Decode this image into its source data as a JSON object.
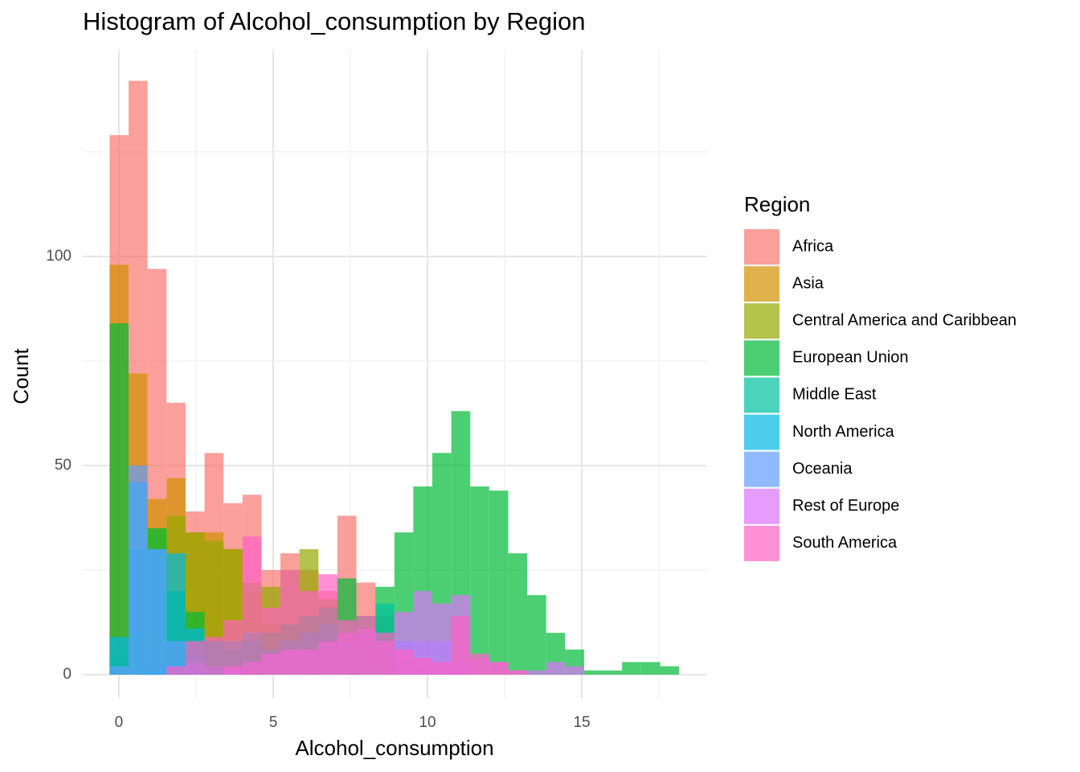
{
  "chart_data": {
    "type": "histogram",
    "title": "Histogram of Alcohol_consumption by Region",
    "x_label": "Alcohol_consumption",
    "y_label": "Count",
    "legend_title": "Region",
    "legend_position": "right",
    "grid": true,
    "opacity": 0.7,
    "xlim": [
      -1.17,
      19.06
    ],
    "ylim": [
      -5.6,
      149.4
    ],
    "xticks": [
      0,
      5,
      10,
      15
    ],
    "yticks": [
      0,
      50,
      100
    ],
    "minor_xticks": [
      2.5,
      7.5,
      12.5,
      17.5
    ],
    "minor_yticks": [
      25,
      75,
      125
    ],
    "bins": [
      -0.3,
      0.315,
      0.93,
      1.545,
      2.16,
      2.775,
      3.39,
      4.005,
      4.62,
      5.235,
      5.85,
      6.465,
      7.08,
      7.695,
      8.31,
      8.925,
      9.54,
      10.155,
      10.77,
      11.385,
      12.0,
      12.615,
      13.23,
      13.845,
      14.46,
      15.075,
      15.69,
      16.305,
      16.92,
      17.535,
      18.15
    ],
    "series": [
      {
        "name": "Africa",
        "color": "#F8766D",
        "values": [
          129,
          142,
          97,
          65,
          39,
          53,
          41,
          43,
          25,
          29,
          25,
          20,
          38,
          22,
          14,
          3,
          2,
          0,
          0,
          0,
          0,
          0,
          0,
          0,
          0,
          0,
          0,
          0,
          0,
          0
        ]
      },
      {
        "name": "Asia",
        "color": "#D39200",
        "values": [
          98,
          72,
          42,
          47,
          34,
          34,
          30,
          20,
          12,
          10,
          12,
          10,
          8,
          5,
          3,
          2,
          1,
          0,
          0,
          0,
          0,
          0,
          0,
          0,
          0,
          0,
          0,
          0,
          0,
          0
        ]
      },
      {
        "name": "Central America and Caribbean",
        "color": "#93AA00",
        "values": [
          5,
          10,
          35,
          38,
          34,
          32,
          30,
          22,
          21,
          25,
          30,
          18,
          10,
          6,
          4,
          2,
          0,
          0,
          0,
          0,
          0,
          0,
          0,
          0,
          0,
          0,
          0,
          0,
          0,
          0
        ]
      },
      {
        "name": "European Union",
        "color": "#00BA38",
        "values": [
          84,
          30,
          35,
          20,
          15,
          8,
          6,
          8,
          10,
          12,
          14,
          16,
          23,
          14,
          21,
          34,
          45,
          53,
          63,
          45,
          44,
          29,
          19,
          10,
          6,
          1,
          1,
          3,
          3,
          2
        ]
      },
      {
        "name": "Middle East",
        "color": "#00C19F",
        "values": [
          0,
          0,
          2,
          3,
          5,
          8,
          8,
          10,
          6,
          8,
          10,
          12,
          8,
          10,
          17,
          8,
          4,
          2,
          0,
          0,
          0,
          0,
          0,
          0,
          0,
          0,
          0,
          0,
          0,
          0
        ]
      },
      {
        "name": "North America",
        "color": "#00B9E3",
        "values": [
          9,
          46,
          30,
          29,
          11,
          0,
          0,
          0,
          0,
          0,
          0,
          0,
          0,
          0,
          0,
          0,
          0,
          0,
          0,
          0,
          0,
          0,
          0,
          0,
          0,
          0,
          0,
          0,
          0,
          0
        ]
      },
      {
        "name": "Oceania",
        "color": "#619CFF",
        "values": [
          2,
          50,
          30,
          8,
          3,
          2,
          1,
          0,
          0,
          0,
          0,
          0,
          0,
          0,
          0,
          8,
          8,
          8,
          3,
          0,
          0,
          0,
          0,
          0,
          0,
          0,
          0,
          0,
          0,
          0
        ]
      },
      {
        "name": "Rest of Europe",
        "color": "#DB72FB",
        "values": [
          0,
          0,
          0,
          0,
          0,
          0,
          2,
          3,
          5,
          6,
          6,
          8,
          10,
          11,
          8,
          15,
          20,
          17,
          19,
          4,
          3,
          1,
          1,
          3,
          2,
          0,
          0,
          0,
          0,
          0
        ]
      },
      {
        "name": "South America",
        "color": "#FF61C3",
        "values": [
          0,
          0,
          0,
          2,
          8,
          9,
          13,
          33,
          16,
          25,
          20,
          24,
          13,
          14,
          10,
          6,
          4,
          3,
          14,
          5,
          3,
          1,
          0,
          0,
          0,
          0,
          0,
          0,
          0,
          0
        ]
      }
    ]
  }
}
